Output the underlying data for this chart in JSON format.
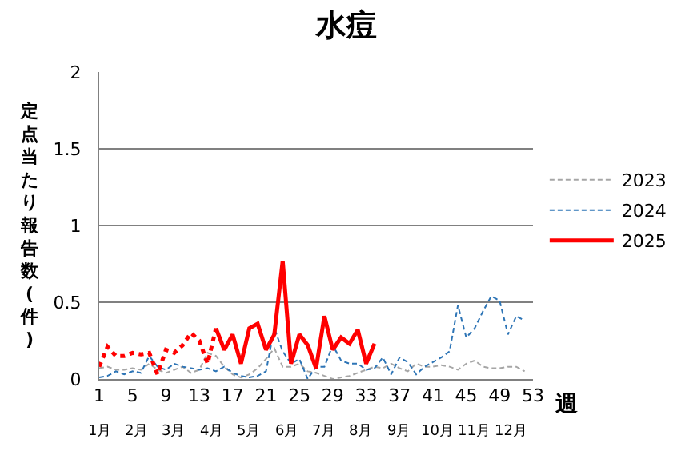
{
  "chart_data": {
    "type": "line",
    "title": "水痘",
    "xlabel": "週",
    "ylabel": "定点当たり報告数(件)",
    "xlim": [
      1,
      53
    ],
    "xticks": [
      1,
      5,
      9,
      13,
      17,
      21,
      25,
      29,
      33,
      37,
      41,
      45,
      49,
      53
    ],
    "annotations": [
      "1月",
      "2月",
      "3月",
      "4月",
      "5月",
      "6月",
      "7月",
      "8月",
      "9月",
      "10月",
      "11月",
      "12月"
    ],
    "ylim": [
      0,
      2
    ],
    "yticks": [
      0,
      0.5,
      1,
      1.5,
      2
    ],
    "grid": "y",
    "legend": "right",
    "marker": "none",
    "series": [
      {
        "name": "2023",
        "color": "#a6a6a6",
        "line_style": "dashed",
        "x": [
          1,
          2,
          3,
          4,
          5,
          6,
          7,
          8,
          9,
          10,
          11,
          12,
          13,
          14,
          15,
          16,
          17,
          18,
          19,
          20,
          21,
          22,
          23,
          24,
          25,
          26,
          27,
          28,
          29,
          30,
          31,
          32,
          33,
          34,
          35,
          36,
          37,
          38,
          39,
          40,
          41,
          42,
          43,
          44,
          45,
          46,
          47,
          48,
          49,
          50,
          51,
          52
        ],
        "values": [
          0.07,
          0.08,
          0.06,
          0.06,
          0.07,
          0.06,
          0.1,
          0.06,
          0.04,
          0.06,
          0.08,
          0.04,
          0.06,
          0.17,
          0.15,
          0.08,
          0.03,
          0.01,
          0.03,
          0.07,
          0.13,
          0.2,
          0.08,
          0.08,
          0.1,
          0.05,
          0.04,
          0.02,
          0,
          0.01,
          0.02,
          0.04,
          0.06,
          0.08,
          0.07,
          0.1,
          0.07,
          0.05,
          0.1,
          0.08,
          0.08,
          0.09,
          0.08,
          0.06,
          0.1,
          0.12,
          0.08,
          0.07,
          0.07,
          0.08,
          0.08,
          0.05
        ]
      },
      {
        "name": "2024",
        "color": "#2e75b6",
        "line_style": "dashed",
        "x": [
          1,
          2,
          3,
          4,
          5,
          6,
          7,
          8,
          9,
          10,
          11,
          12,
          13,
          14,
          15,
          16,
          17,
          18,
          19,
          20,
          21,
          22,
          23,
          24,
          25,
          26,
          27,
          28,
          29,
          30,
          31,
          32,
          33,
          34,
          35,
          36,
          37,
          38,
          39,
          40,
          41,
          42,
          43,
          44,
          45,
          46,
          47,
          48,
          49,
          50,
          51,
          52
        ],
        "values": [
          0.01,
          0.02,
          0.05,
          0.03,
          0.05,
          0.04,
          0.15,
          0.08,
          0.06,
          0.1,
          0.08,
          0.07,
          0.06,
          0.07,
          0.05,
          0.08,
          0.04,
          0.02,
          0.01,
          0.02,
          0.05,
          0.33,
          0.18,
          0.1,
          0.13,
          0,
          0.08,
          0.08,
          0.22,
          0.12,
          0.1,
          0.1,
          0.06,
          0.07,
          0.14,
          0.03,
          0.14,
          0.11,
          0.03,
          0.08,
          0.11,
          0.14,
          0.18,
          0.48,
          0.27,
          0.33,
          0.44,
          0.54,
          0.51,
          0.29,
          0.41,
          0.38
        ]
      },
      {
        "color": "#ff0000",
        "line_style": "dotted",
        "x": [
          1,
          2,
          3,
          4,
          5,
          6,
          7,
          8,
          9,
          10,
          11,
          12,
          13,
          14,
          15
        ],
        "values": [
          0.08,
          0.21,
          0.15,
          0.15,
          0.17,
          0.16,
          0.17,
          0.03,
          0.19,
          0.17,
          0.22,
          0.3,
          0.25,
          0.1,
          0.33
        ]
      },
      {
        "name": "2025",
        "color": "#ff0000",
        "line_style": "solid",
        "x": [
          15,
          16,
          17,
          18,
          19,
          20,
          21,
          22,
          23,
          24,
          25,
          26,
          27,
          28,
          29,
          30,
          31,
          32,
          33,
          34
        ],
        "values": [
          0.33,
          0.19,
          0.29,
          0.1,
          0.33,
          0.36,
          0.19,
          0.29,
          0.77,
          0.1,
          0.29,
          0.22,
          0.07,
          0.41,
          0.19,
          0.27,
          0.23,
          0.32,
          0.1,
          0.23
        ]
      }
    ]
  }
}
